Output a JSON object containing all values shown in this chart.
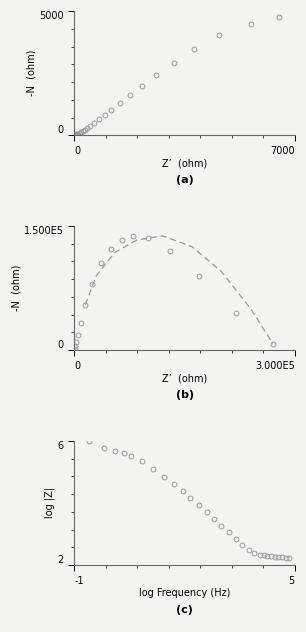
{
  "panel_a": {
    "title": "(a)",
    "xlabel": "Z’  (ohm)",
    "ylabel": "-N  (ohm)",
    "xlim": [
      0,
      7000
    ],
    "ylim": [
      0,
      5000
    ],
    "xtick_max": 7000,
    "ytick_max": 5000,
    "xtick_max_label": "7000",
    "ytick_max_label": "5000",
    "data_x": [
      30,
      45,
      60,
      80,
      100,
      130,
      165,
      210,
      265,
      330,
      410,
      510,
      630,
      780,
      960,
      1180,
      1450,
      1770,
      2150,
      2600,
      3150,
      3800,
      4600,
      5600,
      6500
    ],
    "data_y": [
      15,
      20,
      28,
      38,
      52,
      70,
      95,
      128,
      170,
      225,
      295,
      385,
      500,
      645,
      820,
      1040,
      1300,
      1610,
      1980,
      2420,
      2930,
      3490,
      4050,
      4500,
      4750
    ]
  },
  "panel_b": {
    "title": "(b)",
    "xlabel": "Z’  (ohm)",
    "ylabel": "-N  (ohm)",
    "xlim": [
      0,
      300000
    ],
    "ylim": [
      0,
      150000
    ],
    "xtick_max": 300000,
    "ytick_max": 150000,
    "xtick_max_label": "3.000E5",
    "ytick_max_label": "1.500E5",
    "data_x": [
      500,
      1200,
      2500,
      5000,
      9000,
      15000,
      24000,
      36000,
      50000,
      65000,
      80000,
      100000,
      130000,
      170000,
      220000,
      270000
    ],
    "data_y": [
      2000,
      5000,
      10000,
      18000,
      33000,
      55000,
      80000,
      105000,
      122000,
      133000,
      138000,
      135000,
      120000,
      90000,
      45000,
      8000
    ],
    "fit_x": [
      15000,
      30000,
      55000,
      85000,
      120000,
      160000,
      200000,
      240000,
      270000
    ],
    "fit_y": [
      55000,
      90000,
      118000,
      133000,
      138000,
      125000,
      95000,
      50000,
      8000
    ]
  },
  "panel_c": {
    "title": "(c)",
    "xlabel": "log Frequency (Hz)",
    "ylabel": "log |Z|",
    "xlim": [
      -1,
      5
    ],
    "ylim": [
      2,
      6
    ],
    "xtick_min": -1,
    "xtick_max": 5,
    "ytick_min": 2,
    "ytick_max": 6,
    "data_x": [
      -0.6,
      -0.2,
      0.1,
      0.35,
      0.55,
      0.85,
      1.15,
      1.45,
      1.7,
      1.95,
      2.15,
      2.4,
      2.6,
      2.8,
      3.0,
      3.2,
      3.4,
      3.55,
      3.75,
      3.9,
      4.05,
      4.15,
      4.25,
      4.35,
      4.45,
      4.55,
      4.65,
      4.75,
      4.85
    ],
    "data_y": [
      6.0,
      5.78,
      5.68,
      5.6,
      5.52,
      5.35,
      5.1,
      4.85,
      4.62,
      4.38,
      4.16,
      3.93,
      3.7,
      3.48,
      3.26,
      3.05,
      2.84,
      2.65,
      2.48,
      2.38,
      2.34,
      2.32,
      2.3,
      2.28,
      2.27,
      2.26,
      2.25,
      2.24,
      2.23
    ]
  },
  "marker_color": "#999999",
  "marker_size": 3.5,
  "bg_color": "#f5f3f0",
  "text_color": "#333333",
  "font_size": 7,
  "n_minor_ticks": 6
}
